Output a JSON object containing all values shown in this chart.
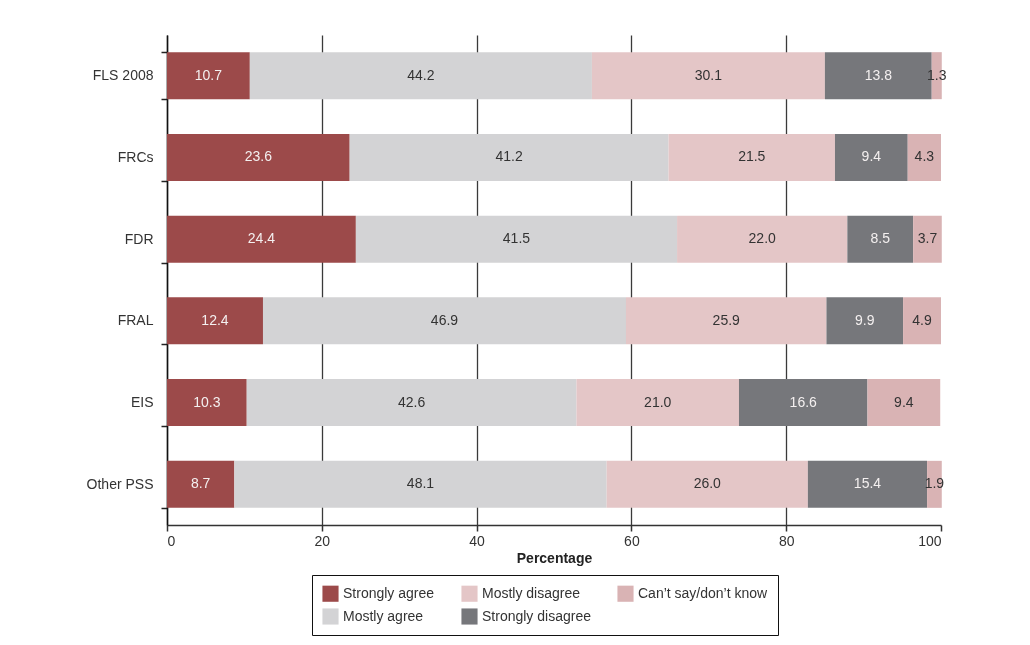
{
  "chart_data": {
    "type": "bar",
    "orientation": "horizontal",
    "stacked": true,
    "categories": [
      "FLS 2008",
      "FRCs",
      "FDR",
      "FRAL",
      "EIS",
      "Other PSS"
    ],
    "series": [
      {
        "name": "Strongly agree",
        "color": "#9c4a4a",
        "values": [
          10.7,
          23.6,
          24.4,
          12.4,
          10.3,
          8.7
        ],
        "value_labels": [
          "10.7",
          "23.6",
          "24.4",
          "12.4",
          "10.3",
          "8.7"
        ]
      },
      {
        "name": "Mostly agree",
        "color": "#d3d3d5",
        "values": [
          44.2,
          41.2,
          41.5,
          46.9,
          42.6,
          48.1
        ],
        "value_labels": [
          "44.2",
          "41.2",
          "41.5",
          "46.9",
          "42.6",
          "48.1"
        ]
      },
      {
        "name": "Mostly disagree",
        "color": "#e4c6c7",
        "values": [
          30.1,
          21.5,
          22.0,
          25.9,
          21.0,
          26.0
        ],
        "value_labels": [
          "30.1",
          "21.5",
          "22.0",
          "25.9",
          "21.0",
          "26.0"
        ]
      },
      {
        "name": "Strongly disagree",
        "color": "#76777b",
        "values": [
          13.8,
          9.4,
          8.5,
          9.9,
          16.6,
          15.4
        ],
        "value_labels": [
          "13.8",
          "9.4",
          "8.5",
          "9.9",
          "16.6",
          "15.4"
        ]
      },
      {
        "name": "Can’t say/don’t know",
        "color": "#d9b3b4",
        "values": [
          1.3,
          4.3,
          3.7,
          4.9,
          9.4,
          1.9
        ],
        "value_labels": [
          "1.3",
          "4.3",
          "3.7",
          "4.9",
          "9.4",
          "1.9"
        ]
      }
    ],
    "xlabel": "Percentage",
    "xlim": [
      0,
      100
    ],
    "xticks": [
      0,
      20,
      40,
      60,
      80,
      100
    ],
    "grid": "x",
    "legend": "bottom"
  }
}
